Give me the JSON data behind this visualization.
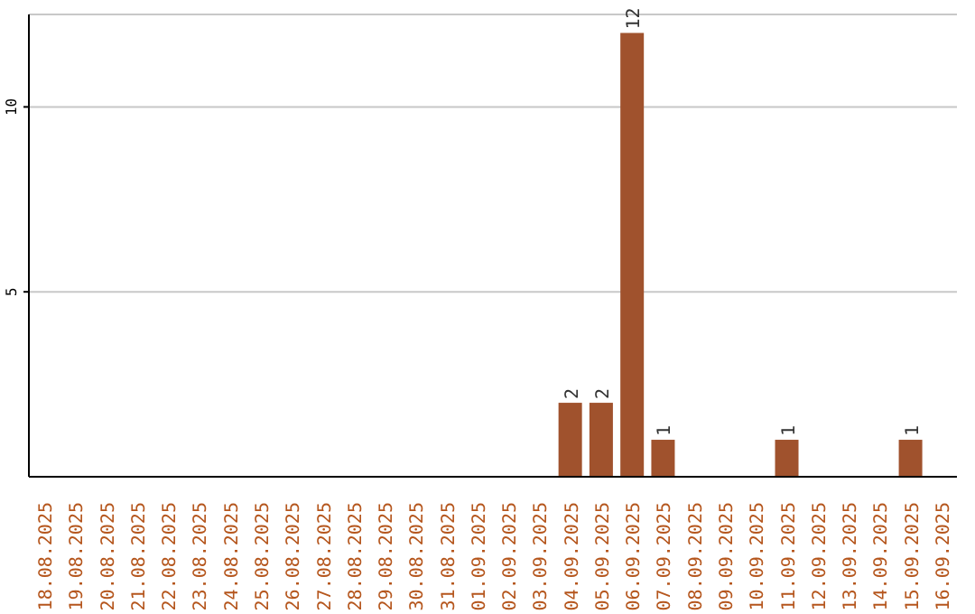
{
  "chart_data": {
    "type": "bar",
    "categories": [
      "18.08.2025",
      "19.08.2025",
      "20.08.2025",
      "21.08.2025",
      "22.08.2025",
      "23.08.2025",
      "24.08.2025",
      "25.08.2025",
      "26.08.2025",
      "27.08.2025",
      "28.08.2025",
      "29.08.2025",
      "30.08.2025",
      "31.08.2025",
      "01.09.2025",
      "02.09.2025",
      "03.09.2025",
      "04.09.2025",
      "05.09.2025",
      "06.09.2025",
      "07.09.2025",
      "08.09.2025",
      "09.09.2025",
      "10.09.2025",
      "11.09.2025",
      "12.09.2025",
      "13.09.2025",
      "14.09.2025",
      "15.09.2025",
      "16.09.2025"
    ],
    "series": [
      {
        "color": "#a0522d",
        "values": [
          0,
          0,
          0,
          0,
          0,
          0,
          0,
          0,
          0,
          0,
          0,
          0,
          0,
          0,
          0,
          0,
          0,
          2,
          2,
          12,
          1,
          0,
          0,
          0,
          1,
          0,
          0,
          0,
          1,
          0
        ],
        "value_labels": [
          null,
          null,
          null,
          null,
          null,
          null,
          null,
          null,
          null,
          null,
          null,
          null,
          null,
          null,
          null,
          null,
          null,
          "2",
          "2",
          "12",
          "1",
          null,
          null,
          null,
          "1",
          null,
          null,
          null,
          "1",
          null
        ]
      }
    ],
    "ylim": [
      0,
      12.5
    ],
    "yticks": [
      5,
      10
    ],
    "grid": "y",
    "legend": false
  }
}
